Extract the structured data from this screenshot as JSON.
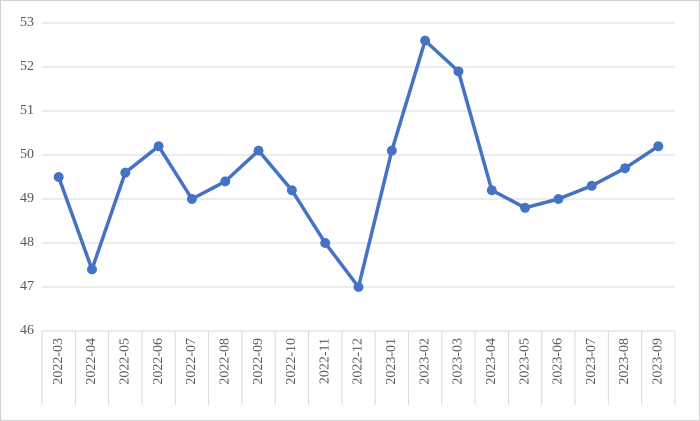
{
  "chart_data": {
    "type": "line",
    "categories": [
      "2022-03",
      "2022-04",
      "2022-05",
      "2022-06",
      "2022-07",
      "2022-08",
      "2022-09",
      "2022-10",
      "2022-11",
      "2022-12",
      "2023-01",
      "2023-02",
      "2023-03",
      "2023-04",
      "2023-05",
      "2023-06",
      "2023-07",
      "2023-08",
      "2023-09"
    ],
    "values": [
      49.5,
      47.4,
      49.6,
      50.2,
      49.0,
      49.4,
      50.1,
      49.2,
      48.0,
      47.0,
      50.1,
      52.6,
      51.9,
      49.2,
      48.8,
      49.0,
      49.3,
      49.7,
      50.2
    ],
    "color": "#4472c4",
    "ylim": [
      46,
      53
    ],
    "yticks": [
      46,
      47,
      48,
      49,
      50,
      51,
      52,
      53
    ],
    "grid": true
  }
}
